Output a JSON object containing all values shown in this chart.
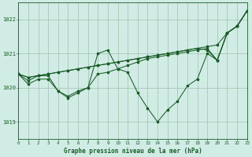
{
  "title": "Graphe pression niveau de la mer (hPa)",
  "background_color": "#d0ece4",
  "grid_color": "#a8c8b8",
  "line_color": "#1a5c28",
  "xlim": [
    0,
    23
  ],
  "ylim": [
    1018.5,
    1022.5
  ],
  "yticks": [
    1019,
    1020,
    1021,
    1022
  ],
  "xticks": [
    0,
    1,
    2,
    3,
    4,
    5,
    6,
    7,
    8,
    9,
    10,
    11,
    12,
    13,
    14,
    15,
    16,
    17,
    18,
    19,
    20,
    21,
    22,
    23
  ],
  "lines": [
    {
      "x": [
        0,
        1,
        2,
        3,
        4,
        5,
        6,
        7,
        8,
        9,
        10,
        11,
        12,
        13,
        14,
        15,
        16,
        17,
        18,
        19,
        20,
        21,
        22,
        23
      ],
      "y": [
        1020.4,
        1020.1,
        1020.25,
        1020.25,
        1019.9,
        1019.7,
        1019.85,
        1020.0,
        1021.0,
        1021.1,
        1020.55,
        1020.45,
        1019.85,
        1019.4,
        1019.0,
        1019.35,
        1019.6,
        1020.05,
        1020.25,
        1021.0,
        1020.8,
        1021.6,
        1021.8,
        1022.25
      ]
    },
    {
      "x": [
        0,
        1,
        2,
        3,
        4,
        5,
        6,
        7,
        8,
        9,
        10,
        11,
        12,
        13,
        14,
        15,
        16,
        17,
        18,
        19,
        20,
        21,
        22,
        23
      ],
      "y": [
        1020.4,
        1020.3,
        1020.35,
        1020.4,
        1020.45,
        1020.5,
        1020.55,
        1020.6,
        1020.65,
        1020.7,
        1020.75,
        1020.8,
        1020.85,
        1020.9,
        1020.95,
        1021.0,
        1021.05,
        1021.1,
        1021.15,
        1021.2,
        1021.25,
        1021.6,
        1021.8,
        1022.25
      ]
    },
    {
      "x": [
        0,
        1,
        2,
        3,
        4,
        5,
        6,
        7,
        8,
        9,
        10,
        11,
        12,
        13,
        14,
        15,
        16,
        17,
        18,
        19,
        20,
        21,
        22,
        23
      ],
      "y": [
        1020.4,
        1020.3,
        1020.35,
        1020.4,
        1020.45,
        1020.5,
        1020.55,
        1020.6,
        1020.65,
        1020.7,
        1020.75,
        1020.8,
        1020.85,
        1020.9,
        1020.95,
        1021.0,
        1021.05,
        1021.1,
        1021.15,
        1021.1,
        1020.8,
        1021.6,
        1021.8,
        1022.25
      ]
    },
    {
      "x": [
        0,
        1,
        2,
        3,
        4,
        5,
        6,
        7,
        8,
        9,
        10,
        11,
        12,
        13,
        14,
        15,
        16,
        17,
        18,
        19,
        20,
        21,
        22,
        23
      ],
      "y": [
        1020.4,
        1020.2,
        1020.35,
        1020.35,
        1019.9,
        1019.75,
        1019.9,
        1020.0,
        1020.4,
        1020.45,
        1020.55,
        1020.65,
        1020.75,
        1020.85,
        1020.9,
        1020.95,
        1021.0,
        1021.05,
        1021.1,
        1021.15,
        1020.8,
        1021.6,
        1021.8,
        1022.25
      ]
    }
  ]
}
